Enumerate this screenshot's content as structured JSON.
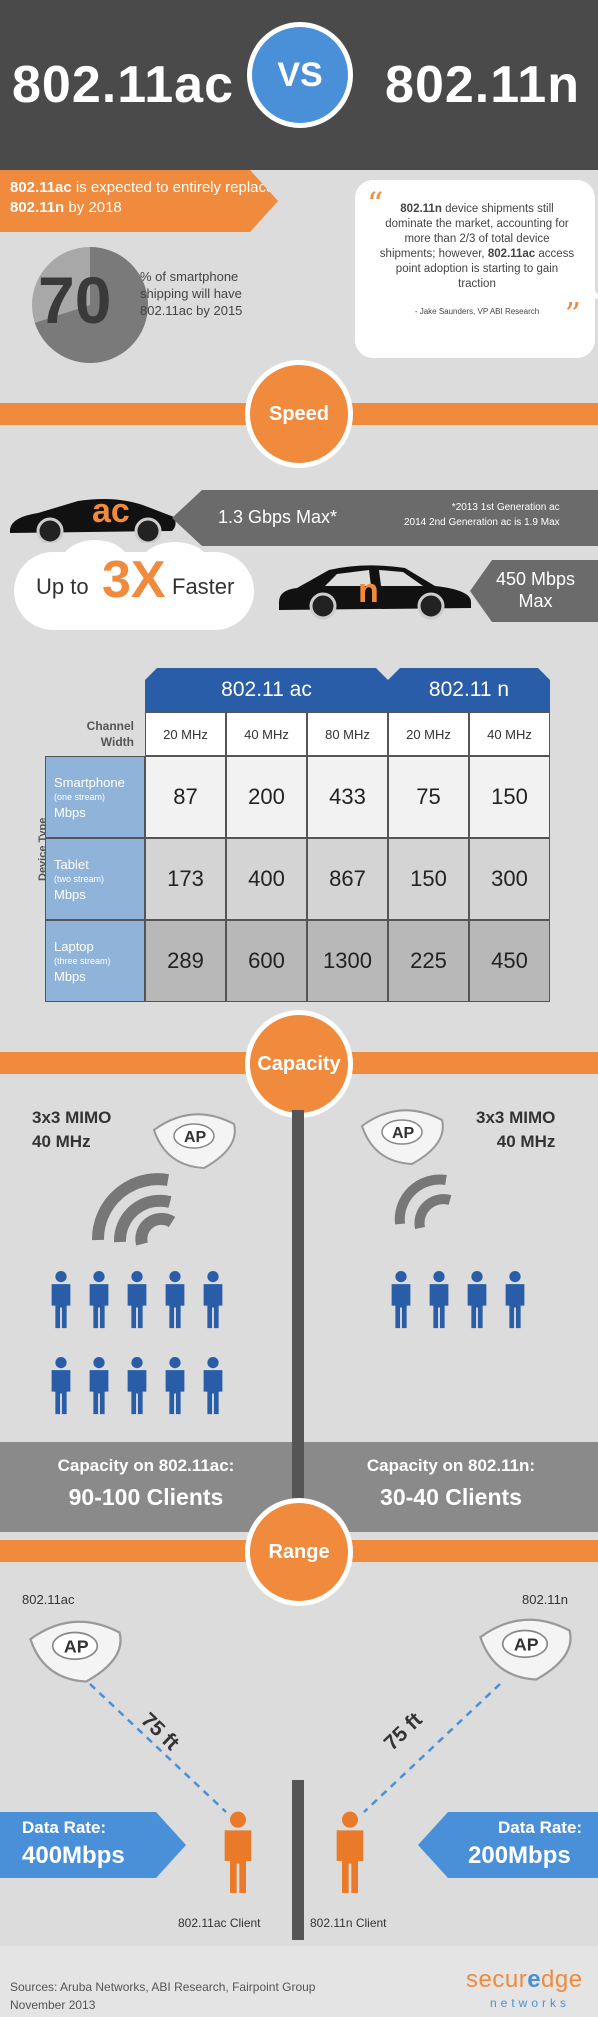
{
  "header": {
    "left_title": "802.11ac",
    "vs": "VS",
    "right_title": "802.11n"
  },
  "intro": {
    "replace_ac": "802.11ac",
    "replace_mid": "is expected to entirely replace",
    "replace_n": "802.11n",
    "replace_end": "by 2018",
    "pie_value": "70",
    "pie_fraction": 0.7,
    "pie_text_1": "% of smartphone",
    "pie_text_2": "shipping will have",
    "pie_text_3": "802.11ac by 2015"
  },
  "quote": {
    "line1_bold": "802.11n",
    "line1": "device shipments still dominate the market, accounting for more than 2/3 of total device shipments; however,",
    "line2_bold": "802.11ac",
    "line2": "access point adoption is starting to gain traction",
    "author": "- Jake Saunders, VP ABI Research"
  },
  "sections": {
    "speed": "Speed",
    "capacity": "Capacity",
    "range": "Range"
  },
  "speed": {
    "ac_label": "ac",
    "ac_max": "1.3 Gbps Max*",
    "note_line1": "*2013 1st Generation ac",
    "note_line2": "2014 2nd Generation ac is 1.9 Max",
    "faster_pre": "Up to",
    "faster_big": "3X",
    "faster_post": "Faster",
    "n_label": "n",
    "n_max_1": "450 Mbps",
    "n_max_2": "Max"
  },
  "table": {
    "ac_header": "802.11 ac",
    "n_header": "802.11 n",
    "channel_width": "Channel Width",
    "device_type": "Device Type",
    "widths": [
      "20 MHz",
      "40 MHz",
      "80 MHz",
      "20 MHz",
      "40 MHz"
    ],
    "rows": [
      {
        "device": "Smartphone",
        "sub": "(one stream)",
        "unit": "Mbps",
        "values": [
          "87",
          "200",
          "433",
          "75",
          "150"
        ]
      },
      {
        "device": "Tablet",
        "sub": "(two stream)",
        "unit": "Mbps",
        "values": [
          "173",
          "400",
          "867",
          "150",
          "300"
        ]
      },
      {
        "device": "Laptop",
        "sub": "(three stream)",
        "unit": "Mbps",
        "values": [
          "289",
          "600",
          "1300",
          "225",
          "450"
        ]
      }
    ]
  },
  "capacity": {
    "left_mimo_1": "3x3 MIMO",
    "left_mimo_2": "40 MHz",
    "right_mimo_1": "3x3 MIMO",
    "right_mimo_2": "40 MHz",
    "ap_label": "AP",
    "left_caption_1": "Capacity on 802.11ac:",
    "left_caption_2": "90-100 Clients",
    "right_caption_1": "Capacity on 802.11n:",
    "right_caption_2": "30-40 Clients"
  },
  "range": {
    "left_ap_label": "802.11ac",
    "right_ap_label": "802.11n",
    "left_distance": "75 ft",
    "right_distance": "75 ft",
    "left_rate_label": "Data Rate:",
    "left_rate_value": "400Mbps",
    "right_rate_label": "Data Rate:",
    "right_rate_value": "200Mbps",
    "left_client": "802.11ac Client",
    "right_client": "802.11n Client"
  },
  "footer": {
    "sources": "Sources: Aruba Networks, ABI Research, Fairpoint Group",
    "date": "November 2013",
    "logo_1": "secur",
    "logo_2": "e",
    "logo_3": "dge",
    "logo_sub": "networks"
  },
  "colors": {
    "orange": "#f08a3c",
    "blue": "#4a90d9",
    "dark_blue": "#2a5da8",
    "dark_gray": "#4a4a4a"
  }
}
